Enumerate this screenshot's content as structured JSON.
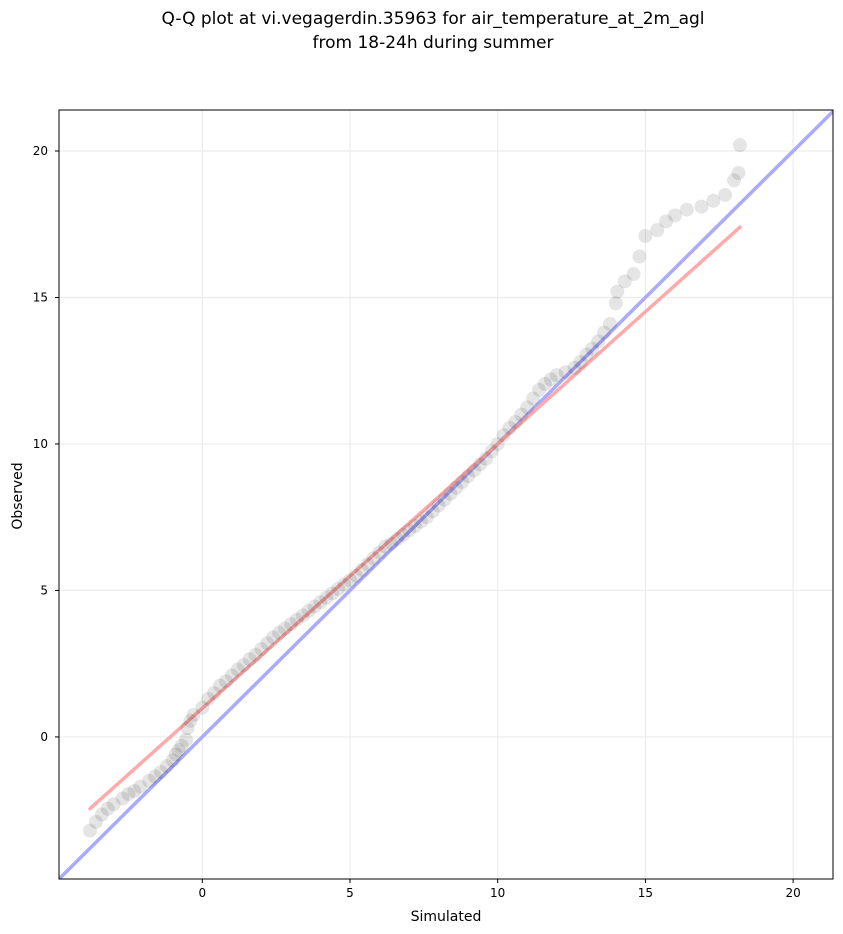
{
  "chart_data": {
    "type": "scatter",
    "title_lines": [
      "Q-Q plot at vi.vegagerdin.35963 for air_temperature_at_2m_agl",
      "from 18-24h during summer"
    ],
    "xlabel": "Simulated",
    "ylabel": "Observed",
    "xlim": [
      -4.85,
      21.35
    ],
    "ylim": [
      -4.85,
      21.4
    ],
    "xticks": [
      0,
      5,
      10,
      15,
      20
    ],
    "yticks": [
      0,
      5,
      10,
      15,
      20
    ],
    "grid": true,
    "series": [
      {
        "kind": "line",
        "color": "#aaaaff",
        "x": [
          -4.85,
          21.35
        ],
        "y": [
          -4.85,
          21.35
        ]
      },
      {
        "kind": "line",
        "color": "#ffaaaa",
        "x": [
          -3.8,
          18.2
        ],
        "y": [
          -2.45,
          17.4
        ]
      },
      {
        "kind": "points",
        "color": "#000000",
        "points": [
          [
            -3.8,
            -3.2
          ],
          [
            -3.6,
            -2.9
          ],
          [
            -3.4,
            -2.65
          ],
          [
            -3.2,
            -2.45
          ],
          [
            -3.0,
            -2.3
          ],
          [
            -2.7,
            -2.1
          ],
          [
            -2.5,
            -1.95
          ],
          [
            -2.3,
            -1.85
          ],
          [
            -2.1,
            -1.7
          ],
          [
            -1.8,
            -1.5
          ],
          [
            -1.6,
            -1.35
          ],
          [
            -1.4,
            -1.2
          ],
          [
            -1.2,
            -1.0
          ],
          [
            -1.0,
            -0.8
          ],
          [
            -0.9,
            -0.6
          ],
          [
            -0.8,
            -0.45
          ],
          [
            -0.7,
            -0.3
          ],
          [
            -0.55,
            -0.1
          ],
          [
            -0.5,
            0.3
          ],
          [
            -0.4,
            0.55
          ],
          [
            -0.3,
            0.75
          ],
          [
            0.0,
            1.0
          ],
          [
            0.2,
            1.3
          ],
          [
            0.4,
            1.5
          ],
          [
            0.6,
            1.75
          ],
          [
            0.8,
            1.9
          ],
          [
            1.0,
            2.1
          ],
          [
            1.2,
            2.3
          ],
          [
            1.4,
            2.45
          ],
          [
            1.6,
            2.65
          ],
          [
            1.8,
            2.8
          ],
          [
            2.0,
            3.0
          ],
          [
            2.2,
            3.2
          ],
          [
            2.4,
            3.4
          ],
          [
            2.6,
            3.55
          ],
          [
            2.8,
            3.7
          ],
          [
            3.0,
            3.85
          ],
          [
            3.2,
            4.0
          ],
          [
            3.4,
            4.15
          ],
          [
            3.6,
            4.3
          ],
          [
            3.8,
            4.45
          ],
          [
            4.0,
            4.6
          ],
          [
            4.2,
            4.75
          ],
          [
            4.4,
            4.9
          ],
          [
            4.6,
            5.05
          ],
          [
            4.8,
            5.2
          ],
          [
            5.0,
            5.35
          ],
          [
            5.2,
            5.5
          ],
          [
            5.4,
            5.7
          ],
          [
            5.6,
            5.9
          ],
          [
            5.8,
            6.1
          ],
          [
            6.0,
            6.3
          ],
          [
            6.2,
            6.5
          ],
          [
            6.4,
            6.6
          ],
          [
            6.6,
            6.75
          ],
          [
            6.8,
            6.9
          ],
          [
            7.0,
            7.05
          ],
          [
            7.2,
            7.2
          ],
          [
            7.4,
            7.35
          ],
          [
            7.6,
            7.5
          ],
          [
            7.8,
            7.7
          ],
          [
            8.0,
            7.9
          ],
          [
            8.2,
            8.1
          ],
          [
            8.4,
            8.3
          ],
          [
            8.6,
            8.5
          ],
          [
            8.8,
            8.7
          ],
          [
            9.0,
            8.9
          ],
          [
            9.2,
            9.1
          ],
          [
            9.4,
            9.3
          ],
          [
            9.6,
            9.5
          ],
          [
            9.8,
            9.75
          ],
          [
            10.0,
            10.0
          ],
          [
            10.2,
            10.3
          ],
          [
            10.4,
            10.55
          ],
          [
            10.6,
            10.75
          ],
          [
            10.8,
            11.0
          ],
          [
            11.0,
            11.25
          ],
          [
            11.2,
            11.55
          ],
          [
            11.4,
            11.85
          ],
          [
            11.6,
            12.05
          ],
          [
            11.8,
            12.2
          ],
          [
            12.0,
            12.35
          ],
          [
            12.3,
            12.45
          ],
          [
            12.6,
            12.6
          ],
          [
            12.8,
            12.8
          ],
          [
            13.0,
            13.05
          ],
          [
            13.2,
            13.25
          ],
          [
            13.4,
            13.5
          ],
          [
            13.6,
            13.8
          ],
          [
            13.8,
            14.1
          ],
          [
            14.0,
            14.8
          ],
          [
            14.05,
            15.2
          ],
          [
            14.3,
            15.55
          ],
          [
            14.6,
            15.8
          ],
          [
            14.8,
            16.4
          ],
          [
            15.0,
            17.1
          ],
          [
            15.4,
            17.3
          ],
          [
            15.7,
            17.6
          ],
          [
            16.0,
            17.8
          ],
          [
            16.4,
            18.0
          ],
          [
            16.9,
            18.1
          ],
          [
            17.3,
            18.3
          ],
          [
            17.7,
            18.5
          ],
          [
            18.0,
            19.0
          ],
          [
            18.15,
            19.25
          ],
          [
            18.2,
            20.2
          ]
        ]
      }
    ]
  }
}
